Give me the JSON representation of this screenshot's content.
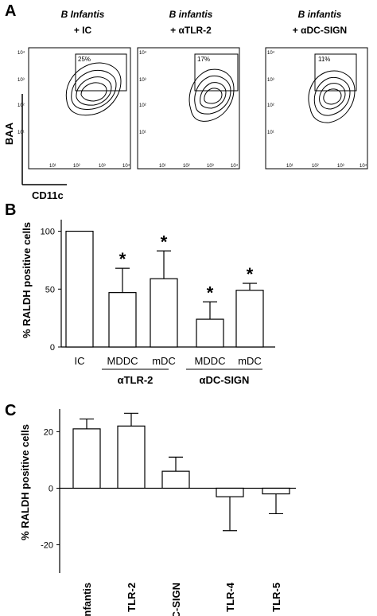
{
  "panel_a": {
    "letter": "A",
    "ylabel": "BAA",
    "xlabel": "CD11c",
    "plots": [
      {
        "title_line1": "B  Infantis",
        "title_line2": "+ IC",
        "gate_percent": "25%"
      },
      {
        "title_line1": "B infantis",
        "title_line2": "+ αTLR-2",
        "gate_percent": "17%"
      },
      {
        "title_line1": "B infantis",
        "title_line2": "+ αDC-SIGN",
        "gate_percent": "11%"
      }
    ],
    "tick_labels": [
      "10⁰",
      "10¹",
      "10²",
      "10³",
      "10⁴"
    ]
  },
  "panel_b": {
    "letter": "B",
    "group_labels": [
      "αTLR-2",
      "αDC-SIGN"
    ]
  },
  "panel_c": {
    "letter": "C"
  },
  "chart_data": [
    {
      "type": "bar",
      "panel": "B",
      "ylabel": "% RALDH positive cells",
      "ylim": [
        0,
        110
      ],
      "yticks": [
        "0",
        "50",
        "100"
      ],
      "categories": [
        "IC",
        "MDDC",
        "mDC",
        "MDDC",
        "mDC"
      ],
      "values": [
        100,
        47,
        59,
        24,
        49
      ],
      "error_upper": [
        0,
        21,
        24,
        15,
        6
      ],
      "significance": [
        "",
        "*",
        "*",
        "*",
        "*"
      ]
    },
    {
      "type": "bar",
      "panel": "C",
      "ylabel": "% RALDH positive cells",
      "ylim": [
        -30,
        28
      ],
      "yticks": [
        "-20",
        "0",
        "20"
      ],
      "categories": [
        "B infantis",
        "TLR-2",
        "DC-SIGN",
        "TLR-4",
        "TLR-5"
      ],
      "values": [
        21,
        22,
        6,
        -3,
        -2
      ],
      "error": [
        3.5,
        4.5,
        5,
        12,
        7
      ]
    }
  ]
}
